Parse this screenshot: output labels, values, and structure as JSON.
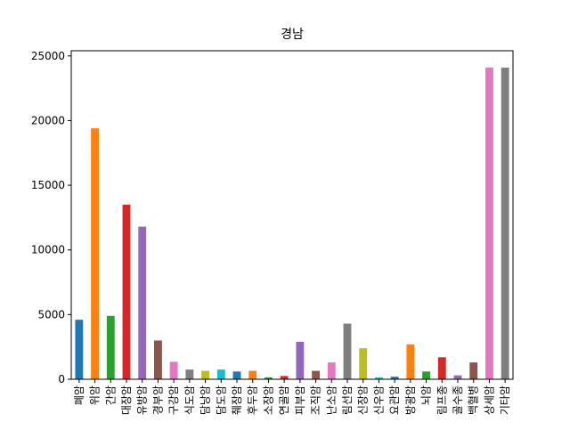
{
  "chart_data": {
    "type": "bar",
    "title": "경남",
    "categories": [
      "폐암",
      "위암",
      "간암",
      "대장암",
      "유방암",
      "경부암",
      "구강암",
      "식도암",
      "담낭암",
      "담도암",
      "췌장암",
      "후두암",
      "소장암",
      "연골암",
      "피부암",
      "조직암",
      "난소암",
      "림선암",
      "신장암",
      "신우암",
      "요관암",
      "방광암",
      "뇌암",
      "림프종",
      "골수종",
      "백혈병",
      "상세암",
      "기타암"
    ],
    "values": [
      4600,
      19400,
      4900,
      13500,
      11800,
      3000,
      1350,
      750,
      650,
      750,
      600,
      650,
      150,
      250,
      2900,
      650,
      1300,
      4300,
      2400,
      150,
      200,
      2700,
      600,
      1700,
      300,
      1300,
      24100,
      24100
    ],
    "colors": [
      "#1f77b4",
      "#ff7f0e",
      "#2ca02c",
      "#d62728",
      "#9467bd",
      "#8c564b",
      "#e377c2",
      "#7f7f7f",
      "#bcbd22",
      "#17becf"
    ],
    "ylim": [
      0,
      25400
    ],
    "yticks": [
      0,
      5000,
      10000,
      15000,
      20000,
      25000
    ]
  }
}
